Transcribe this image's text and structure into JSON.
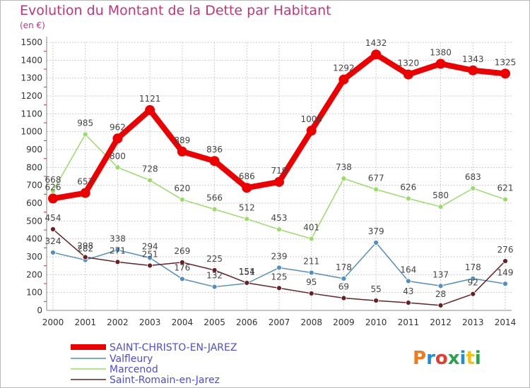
{
  "header": {
    "title": "Evolution du Montant de la Dette par Habitant",
    "subtitle": "(en €)"
  },
  "logo": {
    "text": "Proxiti"
  },
  "colors": {
    "title": "#c7337a",
    "saint_christo": "#ee0000",
    "valfleury": "#4f8fc4",
    "marcenod": "#99dd66",
    "saint_romain": "#6b1e24",
    "legend_text": "#4a4aef",
    "grid": "#cccccc"
  },
  "chart_data": {
    "type": "line",
    "title": "Evolution du Montant de la Dette par Habitant",
    "subtitle": "(en €)",
    "xlabel": "",
    "ylabel": "",
    "x": [
      2000,
      2001,
      2002,
      2003,
      2004,
      2005,
      2006,
      2007,
      2008,
      2009,
      2010,
      2011,
      2012,
      2013,
      2014
    ],
    "ylim": [
      0,
      1500
    ],
    "yticks": [
      0,
      100,
      200,
      300,
      400,
      500,
      600,
      700,
      800,
      900,
      1000,
      1100,
      1200,
      1300,
      1400,
      1500
    ],
    "grid": true,
    "legend_position": "bottom-left",
    "series": [
      {
        "name": "SAINT-CHRISTO-EN-JAREZ",
        "color": "#ee0000",
        "values": [
          626,
          657,
          962,
          1121,
          889,
          836,
          686,
          719,
          1006,
          1292,
          1432,
          1320,
          1380,
          1343,
          1325
        ]
      },
      {
        "name": "Valfleury",
        "color": "#4f8fc4",
        "values": [
          324,
          282,
          338,
          294,
          176,
          132,
          151,
          239,
          211,
          178,
          379,
          164,
          137,
          178,
          149
        ]
      },
      {
        "name": "Marcenod",
        "color": "#99dd66",
        "values": [
          668,
          985,
          800,
          728,
          620,
          566,
          512,
          453,
          401,
          738,
          677,
          626,
          580,
          683,
          621
        ]
      },
      {
        "name": "Saint-Romain-en-Jarez",
        "color": "#6b1e24",
        "values": [
          454,
          298,
          271,
          251,
          269,
          225,
          154,
          125,
          95,
          69,
          55,
          43,
          28,
          92,
          276
        ]
      }
    ]
  }
}
